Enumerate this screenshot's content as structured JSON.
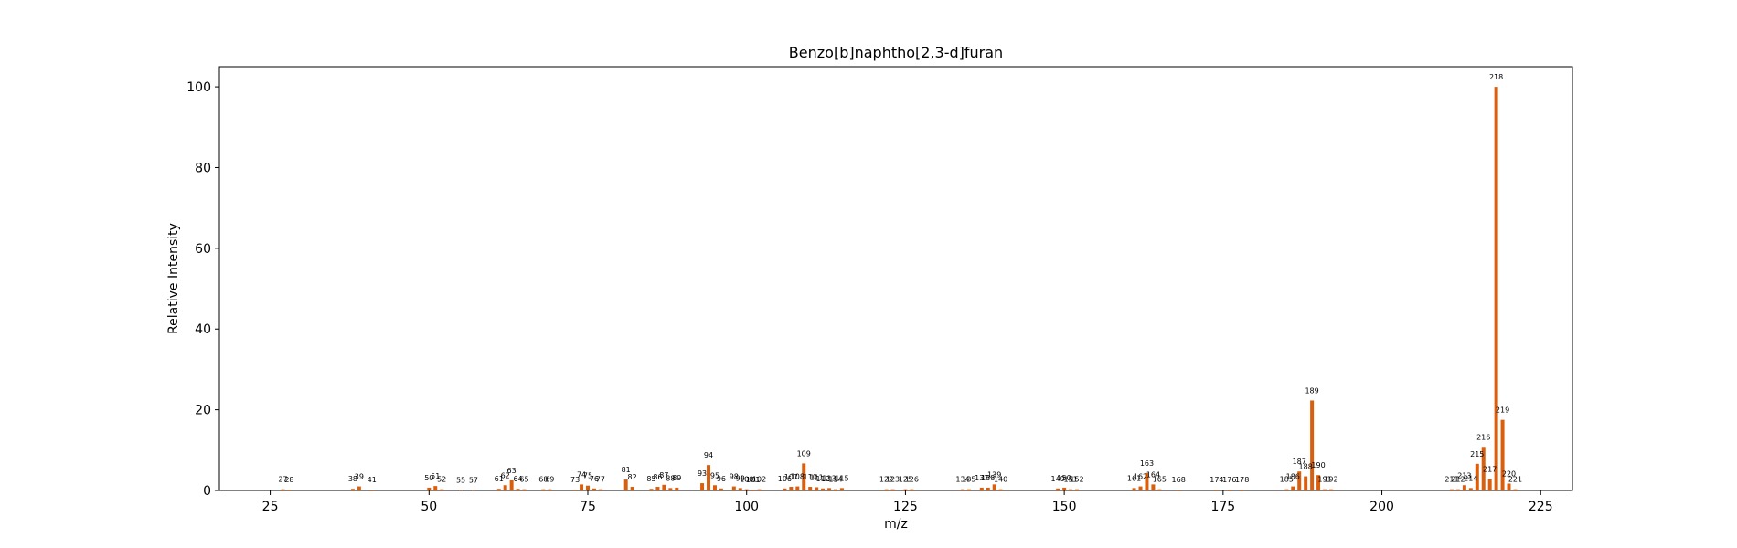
{
  "chart_data": {
    "type": "bar",
    "title": "Benzo[b]naphtho[2,3-d]furan",
    "xlabel": "m/z",
    "ylabel": "Relative Intensity",
    "xlim": [
      17,
      230
    ],
    "ylim": [
      0,
      105
    ],
    "x_ticks": [
      25,
      50,
      75,
      100,
      125,
      150,
      175,
      200,
      225
    ],
    "y_ticks": [
      0,
      20,
      40,
      60,
      80,
      100
    ],
    "bar_color": "#d95f0e",
    "grid": false,
    "legend": "none",
    "series": [
      {
        "x": [
          27,
          28,
          38,
          39,
          41,
          50,
          51,
          52,
          55,
          57,
          61,
          62,
          63,
          64,
          65,
          68,
          69,
          73,
          74,
          75,
          76,
          77,
          81,
          82,
          85,
          86,
          87,
          88,
          89,
          93,
          94,
          95,
          96,
          98,
          99,
          100,
          101,
          102,
          106,
          107,
          108,
          109,
          110,
          111,
          112,
          113,
          114,
          115,
          122,
          123,
          125,
          126,
          134,
          135,
          137,
          138,
          139,
          140,
          149,
          150,
          151,
          152,
          161,
          162,
          163,
          164,
          165,
          168,
          174,
          176,
          178,
          185,
          186,
          187,
          188,
          189,
          190,
          191,
          192,
          211,
          212,
          213,
          214,
          215,
          216,
          217,
          218,
          219,
          220,
          221
        ],
        "values": [
          0.3,
          0.2,
          0.4,
          1.0,
          0.2,
          0.7,
          1.1,
          0.3,
          0.1,
          0.1,
          0.4,
          1.3,
          2.5,
          0.4,
          0.3,
          0.3,
          0.3,
          0.2,
          1.5,
          1.2,
          0.5,
          0.3,
          2.7,
          0.9,
          0.4,
          0.9,
          1.4,
          0.6,
          0.7,
          1.8,
          6.3,
          1.3,
          0.5,
          1.0,
          0.6,
          0.3,
          0.2,
          0.3,
          0.5,
          0.9,
          1.0,
          6.7,
          0.9,
          0.8,
          0.5,
          0.6,
          0.3,
          0.6,
          0.3,
          0.3,
          0.3,
          0.3,
          0.3,
          0.3,
          0.7,
          0.7,
          1.5,
          0.3,
          0.5,
          0.7,
          0.3,
          0.3,
          0.6,
          1.0,
          4.3,
          1.5,
          0.3,
          0.2,
          0.2,
          0.2,
          0.2,
          0.3,
          1.0,
          4.7,
          3.5,
          22.3,
          3.8,
          0.3,
          0.3,
          0.3,
          0.3,
          1.3,
          0.6,
          6.6,
          10.8,
          2.8,
          100,
          17.5,
          1.7,
          0.3
        ]
      }
    ]
  }
}
